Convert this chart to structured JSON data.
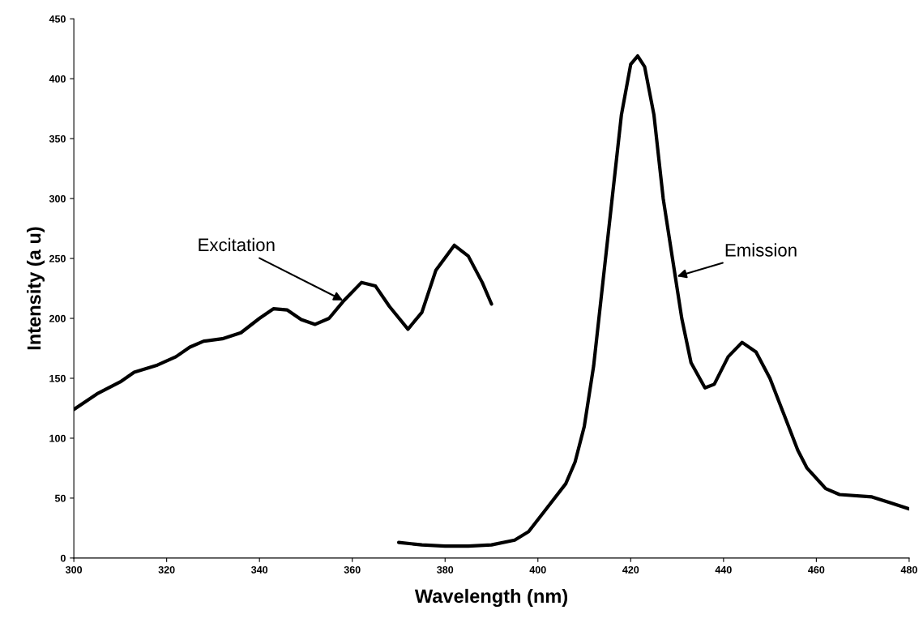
{
  "chart_data": {
    "type": "line",
    "xlabel": "Wavelength (nm)",
    "ylabel": "Intensity (a u)",
    "xlim": [
      300,
      480
    ],
    "xticks": [
      300,
      320,
      340,
      360,
      380,
      400,
      420,
      440,
      460,
      480
    ],
    "ylim": [
      0,
      450
    ],
    "yticks": [
      0,
      50,
      100,
      150,
      200,
      250,
      300,
      350,
      400,
      450
    ],
    "grid": false,
    "legend": false,
    "marker": "none",
    "line_style": "solid",
    "series": [
      {
        "color": "#000000",
        "x": [
          300,
          305,
          310,
          313,
          318,
          322,
          325,
          328,
          332,
          336,
          340,
          343,
          346,
          349,
          352,
          355,
          358,
          362,
          365,
          368,
          372,
          375,
          378,
          382,
          385,
          388,
          390
        ],
        "values": [
          124,
          137,
          147,
          155,
          161,
          168,
          176,
          181,
          183,
          188,
          200,
          208,
          207,
          199,
          195,
          200,
          214,
          230,
          227,
          210,
          191,
          205,
          240,
          261,
          252,
          230,
          212
        ]
      },
      {
        "color": "#000000",
        "x": [
          370,
          375,
          380,
          385,
          390,
          395,
          398,
          402,
          406,
          408,
          410,
          412,
          414,
          416,
          418,
          420,
          421.5,
          423,
          425,
          427,
          429,
          431,
          433,
          436,
          438,
          441,
          444,
          447,
          450,
          453,
          456,
          458,
          462,
          465,
          472,
          476,
          480
        ],
        "values": [
          13,
          11,
          10,
          10,
          11,
          15,
          22,
          42,
          62,
          80,
          110,
          160,
          230,
          300,
          370,
          412,
          419,
          410,
          370,
          300,
          250,
          200,
          163,
          142,
          145,
          168,
          180,
          172,
          150,
          120,
          90,
          75,
          58,
          53,
          51,
          46,
          41
        ]
      }
    ],
    "annotations": [
      {
        "text": "Excitation",
        "x": 358,
        "y": 215
      },
      {
        "text": "Emission",
        "x": 430,
        "y": 235
      }
    ]
  }
}
